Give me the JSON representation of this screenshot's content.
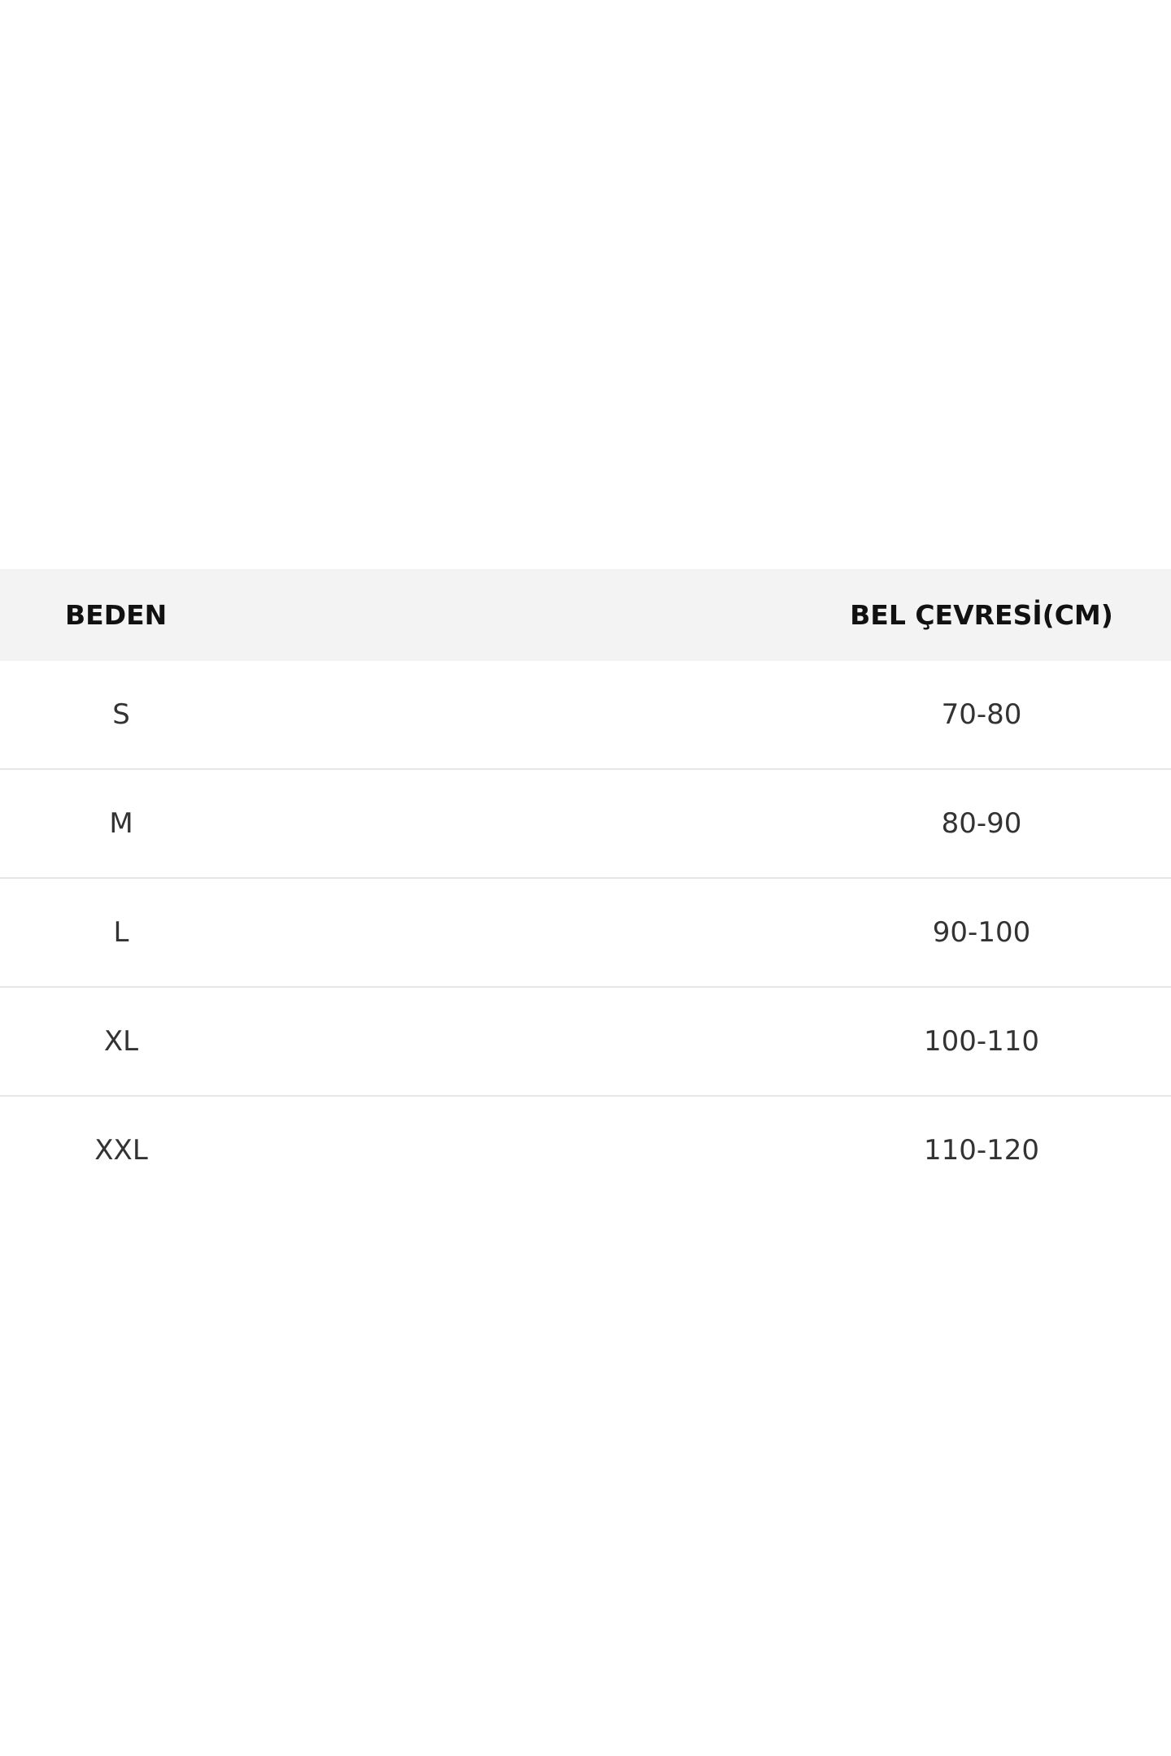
{
  "table": {
    "headers": [
      "BEDEN",
      "BEL ÇEVRESİ(CM)"
    ],
    "rows": [
      [
        "S",
        "70-80"
      ],
      [
        "M",
        "80-90"
      ],
      [
        "L",
        "90-100"
      ],
      [
        "XL",
        "100-110"
      ],
      [
        "XXL",
        "110-120"
      ]
    ]
  }
}
